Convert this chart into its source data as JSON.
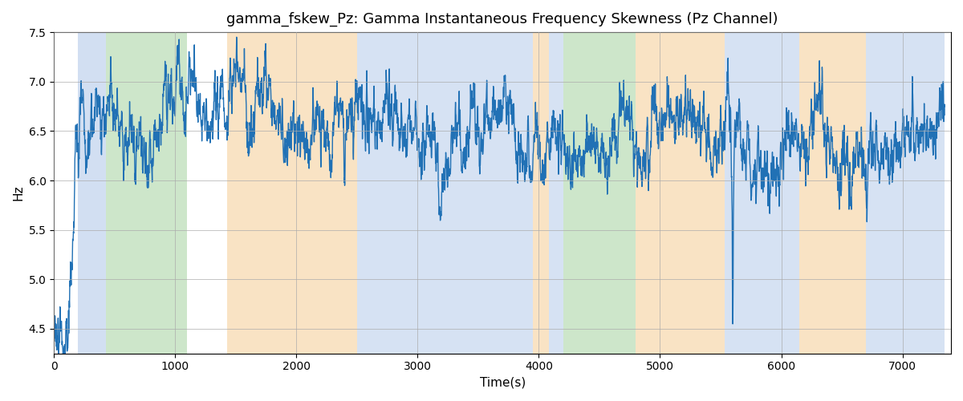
{
  "title": "gamma_fskew_Pz: Gamma Instantaneous Frequency Skewness (Pz Channel)",
  "xlabel": "Time(s)",
  "ylabel": "Hz",
  "ylim": [
    4.25,
    7.5
  ],
  "xlim": [
    0,
    7400
  ],
  "line_color": "#2171b5",
  "line_width": 1.0,
  "background_color": "#ffffff",
  "grid_color": "#aaaaaa",
  "bands": [
    {
      "xstart": 200,
      "xend": 430,
      "color": "#aec6e8",
      "alpha": 0.55
    },
    {
      "xstart": 430,
      "xend": 1100,
      "color": "#90c98a",
      "alpha": 0.45
    },
    {
      "xstart": 1430,
      "xend": 2500,
      "color": "#f5c88a",
      "alpha": 0.5
    },
    {
      "xstart": 2500,
      "xend": 3950,
      "color": "#aec6e8",
      "alpha": 0.5
    },
    {
      "xstart": 3950,
      "xend": 4080,
      "color": "#f5c88a",
      "alpha": 0.5
    },
    {
      "xstart": 4080,
      "xend": 4200,
      "color": "#aec6e8",
      "alpha": 0.5
    },
    {
      "xstart": 4200,
      "xend": 4800,
      "color": "#90c98a",
      "alpha": 0.45
    },
    {
      "xstart": 4800,
      "xend": 5530,
      "color": "#f5c88a",
      "alpha": 0.5
    },
    {
      "xstart": 5530,
      "xend": 6150,
      "color": "#aec6e8",
      "alpha": 0.5
    },
    {
      "xstart": 6150,
      "xend": 6700,
      "color": "#f5c88a",
      "alpha": 0.5
    },
    {
      "xstart": 6700,
      "xend": 7350,
      "color": "#aec6e8",
      "alpha": 0.5
    }
  ],
  "seed": 12345,
  "n_points": 7350
}
